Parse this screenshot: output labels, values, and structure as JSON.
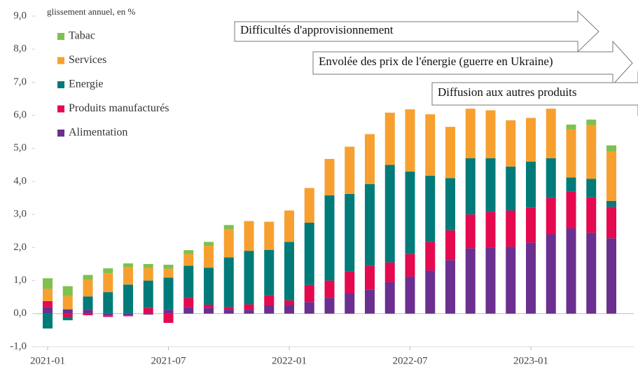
{
  "chart_data": {
    "type": "stacked_bar",
    "y_axis_label": "glissement annuel, en %",
    "categories": [
      "2021-01",
      null,
      null,
      null,
      null,
      null,
      "2021-07",
      null,
      null,
      null,
      null,
      null,
      "2022-01",
      null,
      null,
      null,
      null,
      null,
      "2022-07",
      null,
      null,
      null,
      null,
      null,
      "2023-01",
      null,
      null,
      null,
      null
    ],
    "series": [
      {
        "name": "Alimentation",
        "color": "#6a2f8f",
        "values": [
          0.2,
          0.13,
          0.12,
          -0.05,
          -0.05,
          -0.03,
          0.12,
          0.2,
          0.17,
          0.12,
          0.12,
          0.25,
          0.27,
          0.35,
          0.48,
          0.62,
          0.72,
          0.95,
          1.12,
          1.3,
          1.62,
          1.98,
          2.0,
          2.02,
          2.15,
          2.4,
          2.58,
          2.45,
          2.28
        ]
      },
      {
        "name": "Produits manufacturés",
        "color": "#e5094f",
        "values": [
          0.18,
          -0.1,
          -0.05,
          -0.05,
          -0.03,
          0.17,
          -0.28,
          0.28,
          0.1,
          0.08,
          0.16,
          0.3,
          0.13,
          0.52,
          0.52,
          0.65,
          0.73,
          0.6,
          0.68,
          0.87,
          0.9,
          1.02,
          1.08,
          1.1,
          1.05,
          1.1,
          1.12,
          1.07,
          0.95
        ]
      },
      {
        "name": "Energie",
        "color": "#007b7a",
        "values": [
          -0.45,
          -0.1,
          0.4,
          0.65,
          0.88,
          0.83,
          0.97,
          0.97,
          1.12,
          1.5,
          1.62,
          1.38,
          1.77,
          1.88,
          2.58,
          2.35,
          2.47,
          2.95,
          2.5,
          2.0,
          1.58,
          1.7,
          1.62,
          1.33,
          1.4,
          1.2,
          0.42,
          0.56,
          0.18
        ]
      },
      {
        "name": "Services",
        "color": "#f7a030",
        "values": [
          0.37,
          0.4,
          0.5,
          0.57,
          0.52,
          0.38,
          0.27,
          0.35,
          0.66,
          0.86,
          0.9,
          0.85,
          0.95,
          1.05,
          1.1,
          1.43,
          1.51,
          1.58,
          1.88,
          1.86,
          1.55,
          1.5,
          1.45,
          1.4,
          1.32,
          1.5,
          1.45,
          1.62,
          1.5
        ]
      },
      {
        "name": "Tabac",
        "color": "#7fc04f",
        "values": [
          0.32,
          0.3,
          0.15,
          0.15,
          0.12,
          0.12,
          0.12,
          0.12,
          0.12,
          0.12,
          0,
          0,
          0,
          0,
          0,
          0,
          0,
          0,
          0,
          0,
          0,
          0,
          0,
          0,
          0,
          0,
          0.15,
          0.17,
          0.18
        ]
      }
    ],
    "ylim": [
      -1,
      9
    ],
    "yticks": [
      {
        "value": -1,
        "label": "-1,0"
      },
      {
        "value": 0,
        "label": "0,0"
      },
      {
        "value": 1,
        "label": "1,0"
      },
      {
        "value": 2,
        "label": "2,0"
      },
      {
        "value": 3,
        "label": "3,0"
      },
      {
        "value": 4,
        "label": "4,0"
      },
      {
        "value": 5,
        "label": "5,0"
      },
      {
        "value": 6,
        "label": "6,0"
      },
      {
        "value": 7,
        "label": "7,0"
      },
      {
        "value": 8,
        "label": "8,0"
      },
      {
        "value": 9,
        "label": "9,0"
      }
    ],
    "annotations": [
      "Difficultés d'approvisionnement",
      "Envolée des prix de l'énergie (guerre en Ukraine)",
      "Diffusion aux autres produits"
    ],
    "legend": "top-left"
  }
}
